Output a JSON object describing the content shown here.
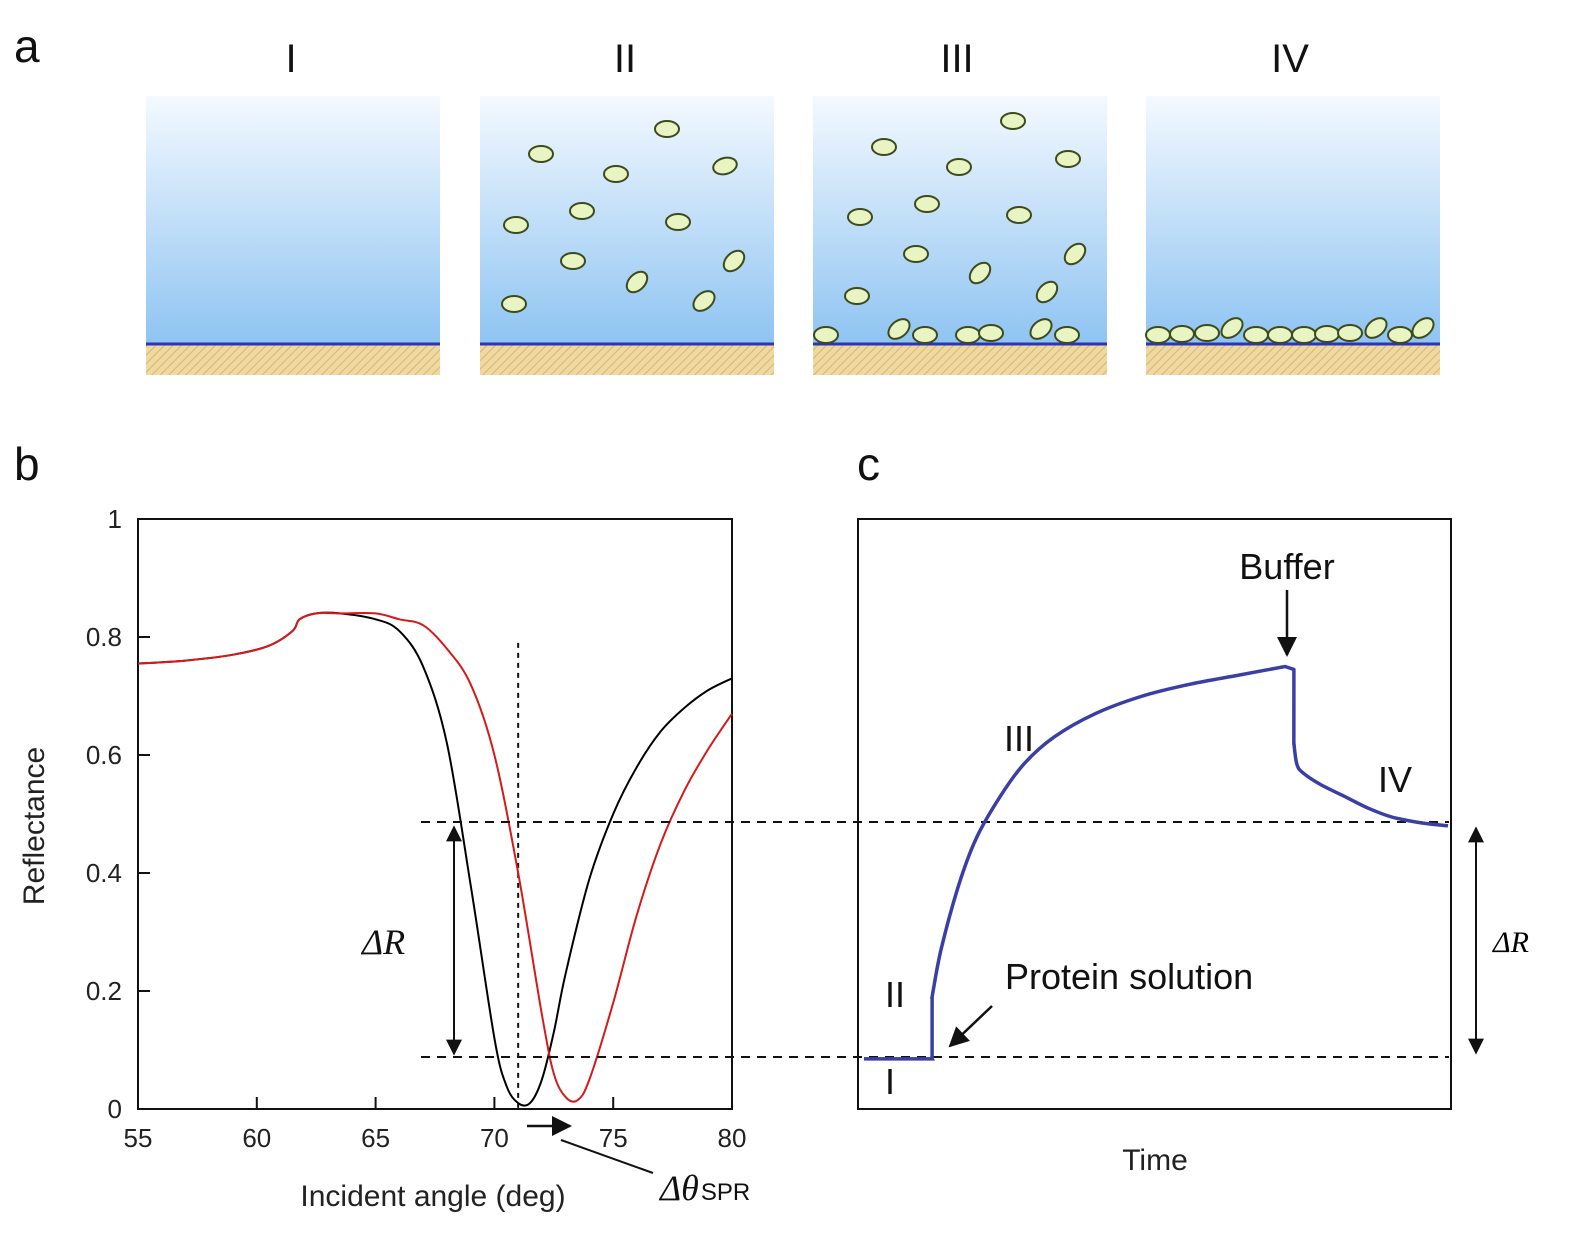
{
  "figure": {
    "panel_a": {
      "letter": "a",
      "stages": [
        "I",
        "II",
        "III",
        "IV"
      ]
    },
    "panel_b": {
      "letter": "b"
    },
    "panel_c": {
      "letter": "c"
    }
  },
  "colors": {
    "water_top": "#f4f9ff",
    "water_bottom": "#8fc4f2",
    "surface_line": "#2a35b8",
    "substrate": "#d9b66a",
    "protein_fill": "#e9f4c3",
    "protein_stroke": "#3d4a1c",
    "curve_before": "#000000",
    "curve_after": "#d41a1a",
    "sensorgram": "#3a3fa6"
  },
  "chart_data": [
    {
      "type": "line",
      "panel": "b",
      "xlabel": "Incident angle (deg)",
      "ylabel": "Reflectance",
      "xlim": [
        55,
        80
      ],
      "ylim": [
        0,
        1
      ],
      "xticks": [
        55,
        60,
        65,
        70,
        75,
        80
      ],
      "yticks": [
        0,
        0.2,
        0.4,
        0.6,
        0.8,
        1
      ],
      "ytick_labels": [
        "0",
        "0.2",
        "0.4",
        "0.6",
        "0.8",
        "1"
      ],
      "series": [
        {
          "color": "#000000",
          "x": [
            55,
            57,
            59,
            60.5,
            61.5,
            61.8,
            62.5,
            63.5,
            65,
            66,
            67,
            68,
            69,
            70,
            70.5,
            71,
            71.5,
            72,
            72.5,
            73,
            74,
            75,
            76,
            77,
            78,
            79,
            80
          ],
          "y": [
            0.755,
            0.76,
            0.77,
            0.785,
            0.81,
            0.83,
            0.84,
            0.84,
            0.83,
            0.81,
            0.75,
            0.62,
            0.38,
            0.12,
            0.04,
            0.01,
            0.01,
            0.05,
            0.13,
            0.23,
            0.39,
            0.5,
            0.58,
            0.64,
            0.68,
            0.71,
            0.73
          ]
        },
        {
          "color": "#d41a1a",
          "x": [
            55,
            57,
            59,
            60.5,
            61.5,
            61.8,
            62.5,
            63.5,
            65,
            66,
            67,
            68,
            69,
            70,
            71,
            72,
            72.5,
            73,
            73.5,
            74,
            75,
            76,
            77,
            78,
            79,
            80
          ],
          "y": [
            0.755,
            0.76,
            0.77,
            0.785,
            0.81,
            0.83,
            0.84,
            0.84,
            0.84,
            0.83,
            0.82,
            0.78,
            0.72,
            0.6,
            0.4,
            0.16,
            0.06,
            0.02,
            0.015,
            0.05,
            0.18,
            0.33,
            0.45,
            0.54,
            0.61,
            0.67
          ]
        }
      ],
      "reference_lines": {
        "vertical_x": 71,
        "horizontal_y": [
          0.48,
          0.085
        ]
      },
      "annotations": {
        "delta_r": "ΔR",
        "delta_theta": "Δθ",
        "delta_theta_sub": "SPR"
      }
    },
    {
      "type": "line",
      "panel": "c",
      "xlabel": "Time",
      "ylabel": "",
      "xlim": [
        0,
        100
      ],
      "ylim": [
        0,
        1
      ],
      "series": [
        {
          "color": "#3a3fa6",
          "x": [
            1,
            12.5,
            12.5,
            14,
            17,
            20,
            24,
            28,
            33,
            40,
            48,
            56,
            64,
            72,
            73.5,
            73.5,
            74,
            75,
            78,
            82,
            86,
            90,
            95,
            99.5
          ],
          "y": [
            0.085,
            0.085,
            0.19,
            0.27,
            0.38,
            0.46,
            0.53,
            0.585,
            0.63,
            0.67,
            0.7,
            0.72,
            0.735,
            0.75,
            0.745,
            0.62,
            0.585,
            0.57,
            0.55,
            0.53,
            0.51,
            0.495,
            0.485,
            0.48
          ]
        }
      ],
      "reference_lines": {
        "horizontal_y": [
          0.48,
          0.085
        ]
      },
      "annotations": {
        "stage_i": "I",
        "stage_ii": "II",
        "stage_iii": "III",
        "stage_iv": "IV",
        "buffer": "Buffer",
        "protein_solution": "Protein solution",
        "delta_r": "ΔR"
      }
    }
  ]
}
